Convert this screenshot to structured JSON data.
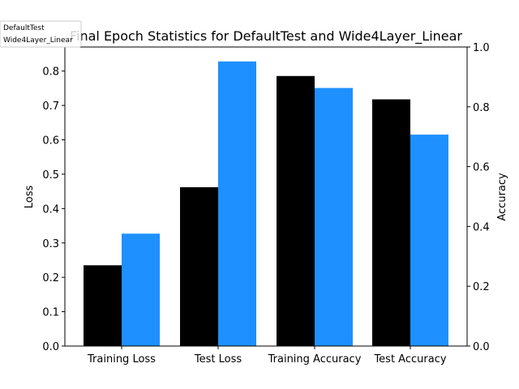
{
  "chart_data": {
    "type": "bar",
    "title": "Final Epoch Statistics for DefaultTest and Wide4Layer_Linear",
    "categories": [
      "Training Loss",
      "Test Loss",
      "Training Accuracy",
      "Test Accuracy"
    ],
    "ylabel_left": "Loss",
    "ylabel_right": "Accuracy",
    "ylim_left": [
      0,
      0.87
    ],
    "ylim_right": [
      0,
      1.0
    ],
    "yticks_left": [
      "0.0",
      "0.1",
      "0.2",
      "0.3",
      "0.4",
      "0.5",
      "0.6",
      "0.7",
      "0.8"
    ],
    "yticks_right": [
      "0.0",
      "0.2",
      "0.4",
      "0.6",
      "0.8",
      "1.0"
    ],
    "series": [
      {
        "name": "DefaultTest",
        "color": "#000000",
        "values": [
          0.235,
          0.462,
          0.903,
          0.825
        ]
      },
      {
        "name": "Wide4Layer_Linear",
        "color": "#1e90ff",
        "values": [
          0.327,
          0.828,
          0.863,
          0.707
        ]
      }
    ],
    "category_axis": [
      "left",
      "left",
      "right",
      "right"
    ],
    "legend_placement": "top-left",
    "grid": false
  }
}
